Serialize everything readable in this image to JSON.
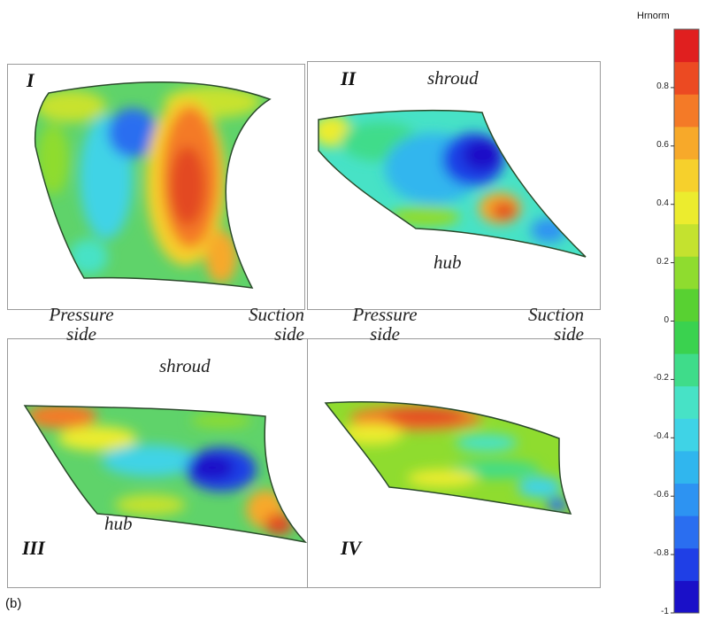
{
  "figure": {
    "caption": "(b)",
    "side_labels": {
      "top_left": [
        "Pressure",
        "side"
      ],
      "top_mid": [
        "Suction",
        "side"
      ],
      "top_right_p": [
        "Pressure",
        "side"
      ],
      "top_right_s": [
        "Suction",
        "side"
      ]
    }
  },
  "panels": [
    {
      "id": "I",
      "labels": []
    },
    {
      "id": "II",
      "labels": [
        "shroud",
        "hub"
      ]
    },
    {
      "id": "III",
      "labels": [
        "shroud",
        "hub"
      ]
    },
    {
      "id": "IV",
      "labels": []
    }
  ],
  "colorbar": {
    "title": "Hrnorm",
    "ticks": [
      "0.8",
      "0.6",
      "0.4",
      "0.2",
      "0",
      "-0.2",
      "-0.4",
      "-0.6",
      "-0.8",
      "-1"
    ],
    "min": -1,
    "max": 1,
    "colors": [
      "#1a10c8",
      "#1f3fe6",
      "#2a6ef0",
      "#2d93f2",
      "#30b6ee",
      "#3fd3e6",
      "#47e2c6",
      "#3fdc8a",
      "#3ad24f",
      "#58d132",
      "#8fdc2f",
      "#c4e22f",
      "#ecec2e",
      "#f6d02c",
      "#f7a92a",
      "#f47a27",
      "#ec4a22",
      "#e01f1f"
    ]
  }
}
